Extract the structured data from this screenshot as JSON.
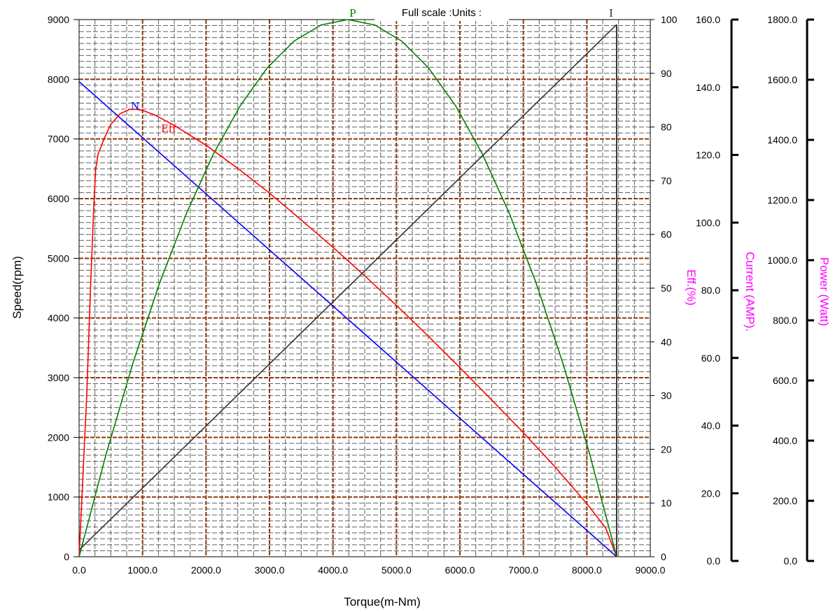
{
  "chart_data": {
    "type": "line",
    "title": "Full scale :Units :",
    "xlabel": "Torque(m-Nm)",
    "xlim": [
      0,
      9000
    ],
    "x_ticks": [
      "0.0",
      "1000.0",
      "2000.0",
      "3000.0",
      "4000.0",
      "5000.0",
      "6000.0",
      "7000.0",
      "8000.0",
      "9000.0"
    ],
    "axes": [
      {
        "key": "speed",
        "label": "Speed(rpm)",
        "range": [
          0,
          9000
        ],
        "ticks": [
          "0",
          "1000",
          "2000",
          "3000",
          "4000",
          "5000",
          "6000",
          "7000",
          "8000",
          "9000"
        ],
        "color": "#000000"
      },
      {
        "key": "eff",
        "label": "Eff.(%)",
        "range": [
          0,
          100
        ],
        "ticks": [
          "0",
          "10",
          "20",
          "30",
          "40",
          "50",
          "60",
          "70",
          "80",
          "90",
          "100"
        ],
        "color": "#ff00ff"
      },
      {
        "key": "current",
        "label": "Current (AMP).",
        "range": [
          0,
          160
        ],
        "ticks": [
          "0.0",
          "20.0",
          "40.0",
          "60.0",
          "80.0",
          "100.0",
          "120.0",
          "140.0",
          "160.0"
        ],
        "color": "#ff00ff"
      },
      {
        "key": "power",
        "label": "Power (Watt)",
        "range": [
          0,
          1800
        ],
        "ticks": [
          "0.0",
          "200.0",
          "400.0",
          "600.0",
          "800.0",
          "1000.0",
          "1200.0",
          "1400.0",
          "1600.0",
          "1800.0"
        ],
        "color": "#ff00ff"
      }
    ],
    "grid": true,
    "series": [
      {
        "name": "N",
        "axis": "speed",
        "color": "#0000ff",
        "x": [
          0,
          8470
        ],
        "values": [
          7960,
          0
        ]
      },
      {
        "name": "Eff",
        "axis": "eff",
        "color": "#ff0000",
        "x": [
          0,
          120,
          180,
          230,
          260,
          300,
          400,
          500,
          650,
          800,
          900,
          1000,
          1200,
          1500,
          2000,
          2500,
          3000,
          3500,
          4000,
          4500,
          5000,
          5500,
          6000,
          6500,
          7000,
          7500,
          8000,
          8300,
          8470
        ],
        "values": [
          0,
          30,
          50,
          65,
          72,
          75,
          78,
          80.5,
          82.5,
          83.3,
          83.3,
          83.1,
          82.2,
          80.3,
          76.6,
          72.3,
          67.7,
          62.7,
          57.6,
          52.3,
          46.8,
          41.1,
          35.2,
          29.2,
          23.1,
          16.7,
          9.9,
          5.3,
          0
        ]
      },
      {
        "name": "P",
        "axis": "power",
        "color": "#008000",
        "x": [
          0,
          423,
          847,
          1270,
          1694,
          2117,
          2541,
          2964,
          3388,
          3811,
          4235,
          4659,
          5082,
          5506,
          5929,
          6353,
          6776,
          7200,
          7623,
          8047,
          8470
        ],
        "values": [
          0,
          342,
          648,
          918,
          1152,
          1350,
          1512,
          1638,
          1728,
          1782,
          1800,
          1782,
          1728,
          1638,
          1512,
          1350,
          1152,
          918,
          648,
          342,
          0
        ]
      },
      {
        "name": "I",
        "axis": "current",
        "color": "#333333",
        "x": [
          0,
          8470
        ],
        "values": [
          2,
          158.5
        ]
      }
    ]
  }
}
